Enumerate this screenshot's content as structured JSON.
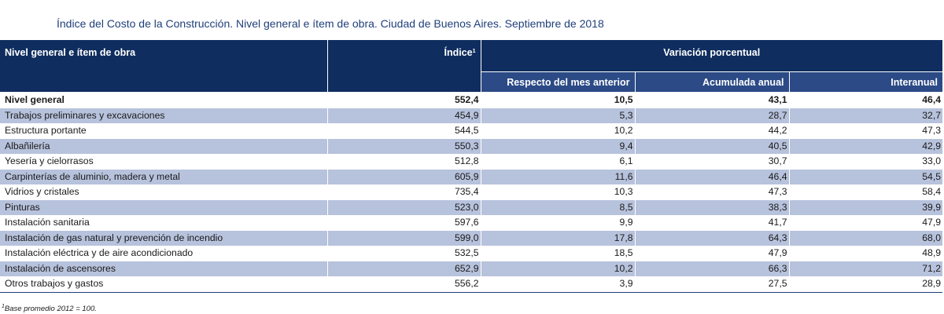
{
  "title": "Índice del Costo de la Construcción. Nivel general e ítem de obra. Ciudad de Buenos Aires. Septiembre de 2018",
  "table": {
    "headers": {
      "nivel": "Nivel general e ítem de obra",
      "indice": "Índice",
      "indice_sup": "1",
      "variacion": "Variación porcentual",
      "mes_anterior": "Respecto del mes anterior",
      "acumulada": "Acumulada anual",
      "interanual": "Interanual"
    },
    "rows": [
      {
        "label": "Nivel general",
        "indice": "552,4",
        "mes": "10,5",
        "acum": "43,1",
        "inter": "46,4"
      },
      {
        "label": "Trabajos preliminares y excavaciones",
        "indice": "454,9",
        "mes": "5,3",
        "acum": "28,7",
        "inter": "32,7"
      },
      {
        "label": "Estructura portante",
        "indice": "544,5",
        "mes": "10,2",
        "acum": "44,2",
        "inter": "47,3"
      },
      {
        "label": "Albañilería",
        "indice": "550,3",
        "mes": "9,4",
        "acum": "40,5",
        "inter": "42,9"
      },
      {
        "label": "Yesería y cielorrasos",
        "indice": "512,8",
        "mes": "6,1",
        "acum": "30,7",
        "inter": "33,0"
      },
      {
        "label": "Carpinterías de aluminio, madera y metal",
        "indice": "605,9",
        "mes": "11,6",
        "acum": "46,4",
        "inter": "54,5"
      },
      {
        "label": "Vidrios y cristales",
        "indice": "735,4",
        "mes": "10,3",
        "acum": "47,3",
        "inter": "58,4"
      },
      {
        "label": "Pinturas",
        "indice": "523,0",
        "mes": "8,5",
        "acum": "38,3",
        "inter": "39,9"
      },
      {
        "label": "Instalación sanitaria",
        "indice": "597,6",
        "mes": "9,9",
        "acum": "41,7",
        "inter": "47,9"
      },
      {
        "label": "Instalación de gas natural y prevención de incendio",
        "indice": "599,0",
        "mes": "17,8",
        "acum": "64,3",
        "inter": "68,0"
      },
      {
        "label": "Instalación eléctrica y de aire acondicionado",
        "indice": "532,5",
        "mes": "18,5",
        "acum": "47,9",
        "inter": "48,9"
      },
      {
        "label": "Instalación de ascensores",
        "indice": "652,9",
        "mes": "10,2",
        "acum": "66,3",
        "inter": "71,2"
      },
      {
        "label": "Otros trabajos y gastos",
        "indice": "556,2",
        "mes": "3,9",
        "acum": "27,5",
        "inter": "28,9"
      }
    ]
  },
  "footnote": {
    "sup": "1",
    "text": "Base promedio 2012 = 100."
  },
  "colors": {
    "header_dark": "#0f2d5f",
    "header_sub": "#2b4a86",
    "stripe": "#b7c2dc",
    "title": "#1f3f7a"
  }
}
